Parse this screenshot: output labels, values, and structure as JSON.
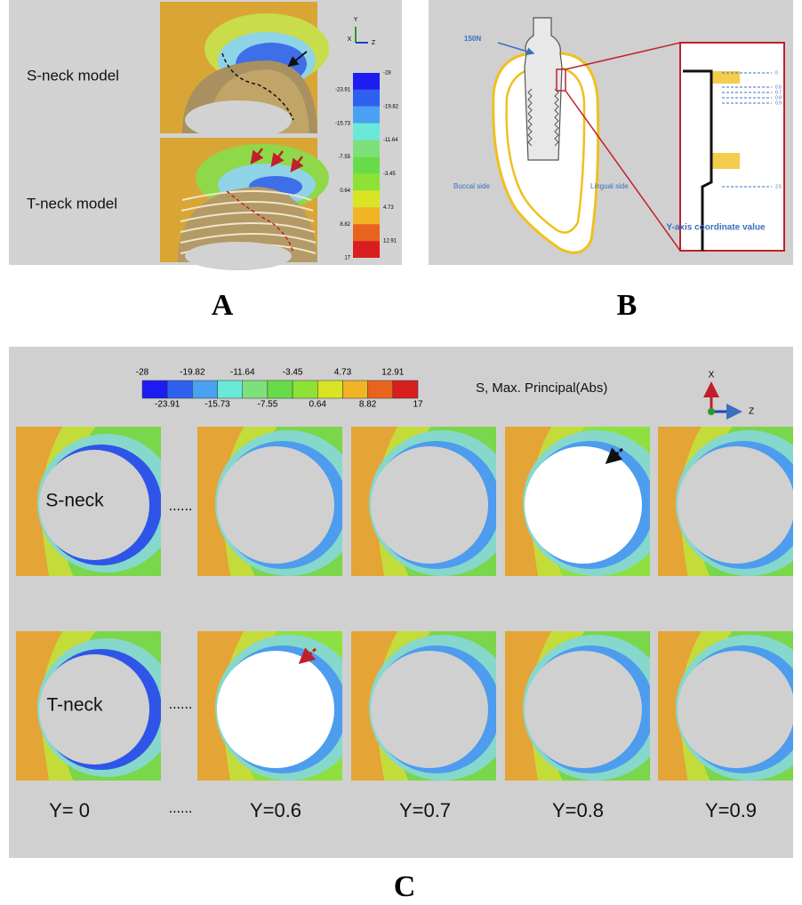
{
  "panel_a": {
    "label": "A",
    "s_neck": "S-neck model",
    "t_neck": "T-neck model",
    "axes": {
      "y": "Y",
      "x": "X",
      "z": "Z"
    },
    "colorbar": [
      "-28",
      "-23.91",
      "-19.82",
      "-15.73",
      "-11.64",
      "-7.55",
      "-3.45",
      "0.64",
      "4.73",
      "8.82",
      "12.91",
      "17"
    ]
  },
  "panel_b": {
    "label": "B",
    "force": "150N",
    "buccal": "Buccal side",
    "lingual": "Lingual side",
    "axis_title": "Y-axis coordinate value",
    "levels": [
      "0",
      "0.6",
      "0.7",
      "0.8",
      "0.9",
      "2.5"
    ]
  },
  "panel_c": {
    "label": "C",
    "legend_title": "S, Max. Principal(Abs)",
    "legend": [
      "-28",
      "-23.91",
      "-19.82",
      "-15.73",
      "-11.64",
      "-7.55",
      "-3.45",
      "0.64",
      "4.73",
      "8.82",
      "12.91",
      "17"
    ],
    "axes": {
      "x": "X",
      "z": "Z"
    },
    "rows": [
      "S-neck",
      "T-neck"
    ],
    "ellipsis": "......",
    "columns": [
      "Y= 0",
      "Y=0.6",
      "Y=0.7",
      "Y=0.8",
      "Y=0.9"
    ]
  }
}
